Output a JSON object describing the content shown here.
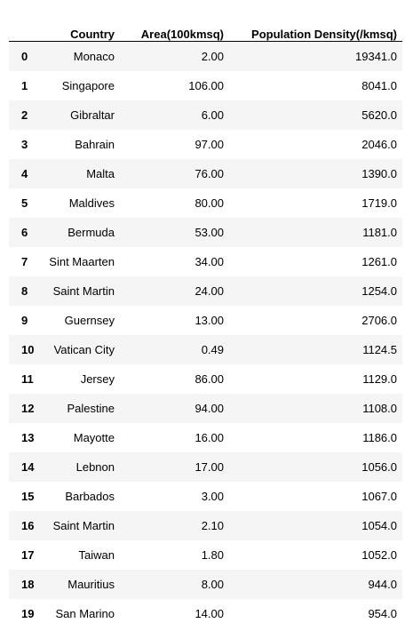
{
  "columns": {
    "index": "",
    "country": "Country",
    "area": "Area(100kmsq)",
    "density": "Population Density(/kmsq)"
  },
  "rows": [
    {
      "index": "0",
      "country": "Monaco",
      "area": "2.00",
      "density": "19341.0"
    },
    {
      "index": "1",
      "country": "Singapore",
      "area": "106.00",
      "density": "8041.0"
    },
    {
      "index": "2",
      "country": "Gibraltar",
      "area": "6.00",
      "density": "5620.0"
    },
    {
      "index": "3",
      "country": "Bahrain",
      "area": "97.00",
      "density": "2046.0"
    },
    {
      "index": "4",
      "country": "Malta",
      "area": "76.00",
      "density": "1390.0"
    },
    {
      "index": "5",
      "country": "Maldives",
      "area": "80.00",
      "density": "1719.0"
    },
    {
      "index": "6",
      "country": "Bermuda",
      "area": "53.00",
      "density": "1181.0"
    },
    {
      "index": "7",
      "country": "Sint Maarten",
      "area": "34.00",
      "density": "1261.0"
    },
    {
      "index": "8",
      "country": "Saint Martin",
      "area": "24.00",
      "density": "1254.0"
    },
    {
      "index": "9",
      "country": "Guernsey",
      "area": "13.00",
      "density": "2706.0"
    },
    {
      "index": "10",
      "country": "Vatican City",
      "area": "0.49",
      "density": "1124.5"
    },
    {
      "index": "11",
      "country": "Jersey",
      "area": "86.00",
      "density": "1129.0"
    },
    {
      "index": "12",
      "country": "Palestine",
      "area": "94.00",
      "density": "1108.0"
    },
    {
      "index": "13",
      "country": "Mayotte",
      "area": "16.00",
      "density": "1186.0"
    },
    {
      "index": "14",
      "country": "Lebnon",
      "area": "17.00",
      "density": "1056.0"
    },
    {
      "index": "15",
      "country": "Barbados",
      "area": "3.00",
      "density": "1067.0"
    },
    {
      "index": "16",
      "country": "Saint Martin",
      "area": "2.10",
      "density": "1054.0"
    },
    {
      "index": "17",
      "country": "Taiwan",
      "area": "1.80",
      "density": "1052.0"
    },
    {
      "index": "18",
      "country": "Mauritius",
      "area": "8.00",
      "density": "944.0"
    },
    {
      "index": "19",
      "country": "San Marino",
      "area": "14.00",
      "density": "954.0"
    }
  ]
}
